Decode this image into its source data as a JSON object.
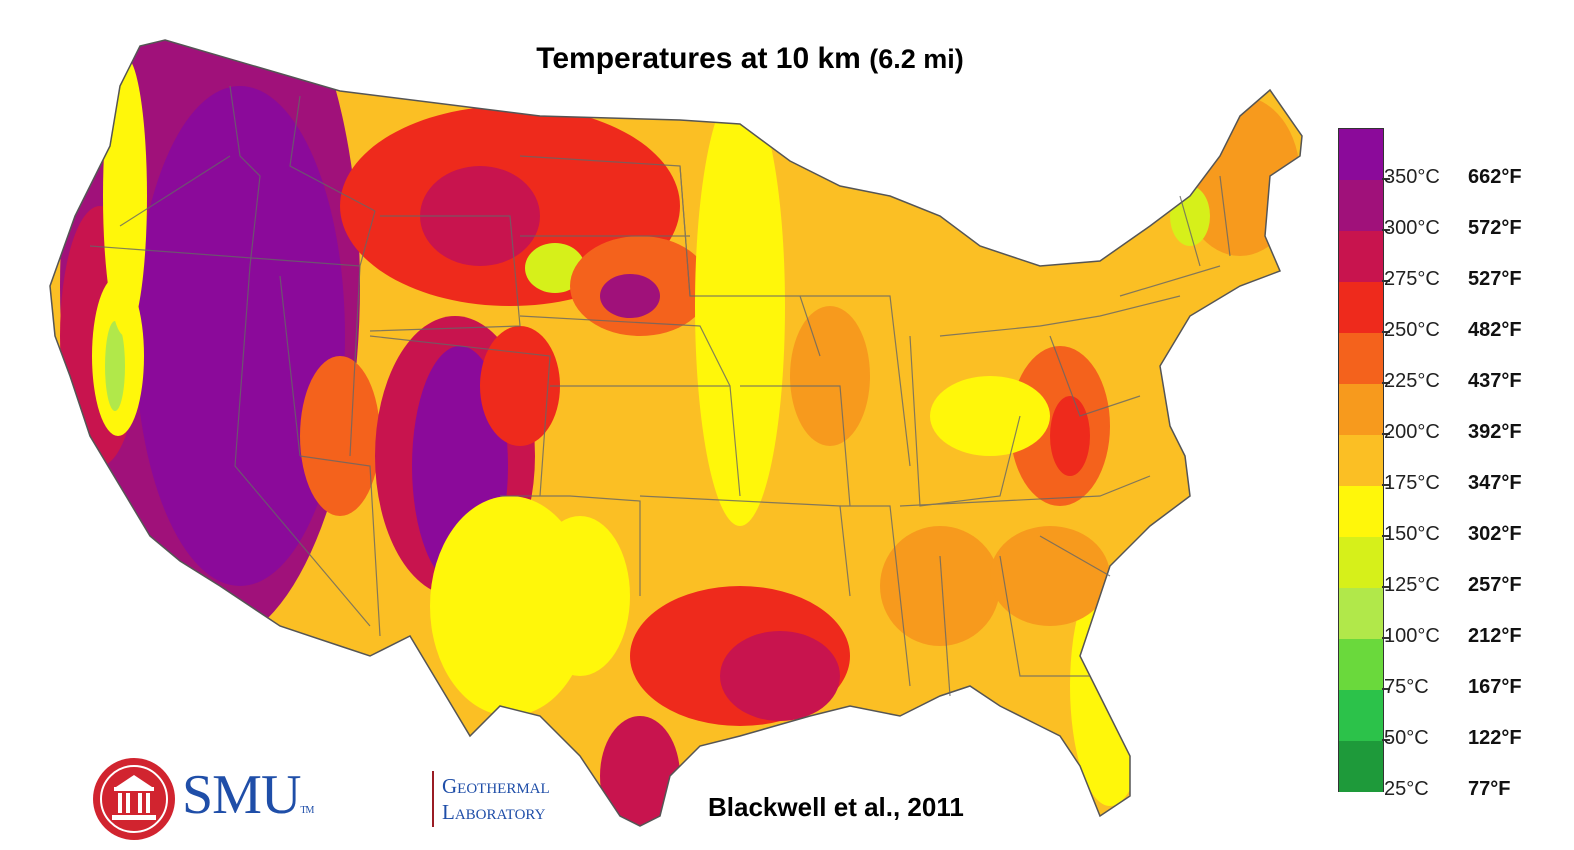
{
  "title": {
    "main": "Temperatures at 10 km",
    "sub": "(6.2 mi)"
  },
  "citation": "Blackwell et al., 2011",
  "logo": {
    "wordmark": "SMU",
    "trademark": "TM",
    "dept_line1": "Geothermal",
    "dept_line2": "Laboratory",
    "accent_color": "#d1242f",
    "brand_color": "#1f4ea8"
  },
  "legend": {
    "entries": [
      {
        "c": "350°C",
        "f": "662°F",
        "color": "#8b0a9a"
      },
      {
        "c": "300°C",
        "f": "572°F",
        "color": "#a0117a"
      },
      {
        "c": "275°C",
        "f": "527°F",
        "color": "#c8144e"
      },
      {
        "c": "250°C",
        "f": "482°F",
        "color": "#ee2a1c"
      },
      {
        "c": "225°C",
        "f": "437°F",
        "color": "#f4621c"
      },
      {
        "c": "200°C",
        "f": "392°F",
        "color": "#f79a1d"
      },
      {
        "c": "175°C",
        "f": "347°F",
        "color": "#fbbf24"
      },
      {
        "c": "150°C",
        "f": "302°F",
        "color": "#fff70a"
      },
      {
        "c": "125°C",
        "f": "257°F",
        "color": "#d6f01a"
      },
      {
        "c": "100°C",
        "f": "212°F",
        "color": "#b1e84a"
      },
      {
        "c": "75°C",
        "f": "167°F",
        "color": "#6ad93c"
      },
      {
        "c": "50°C",
        "f": "122°F",
        "color": "#2cc24a"
      },
      {
        "c": "25°C",
        "f": "77°F",
        "color": "#1e9a3a"
      }
    ]
  }
}
